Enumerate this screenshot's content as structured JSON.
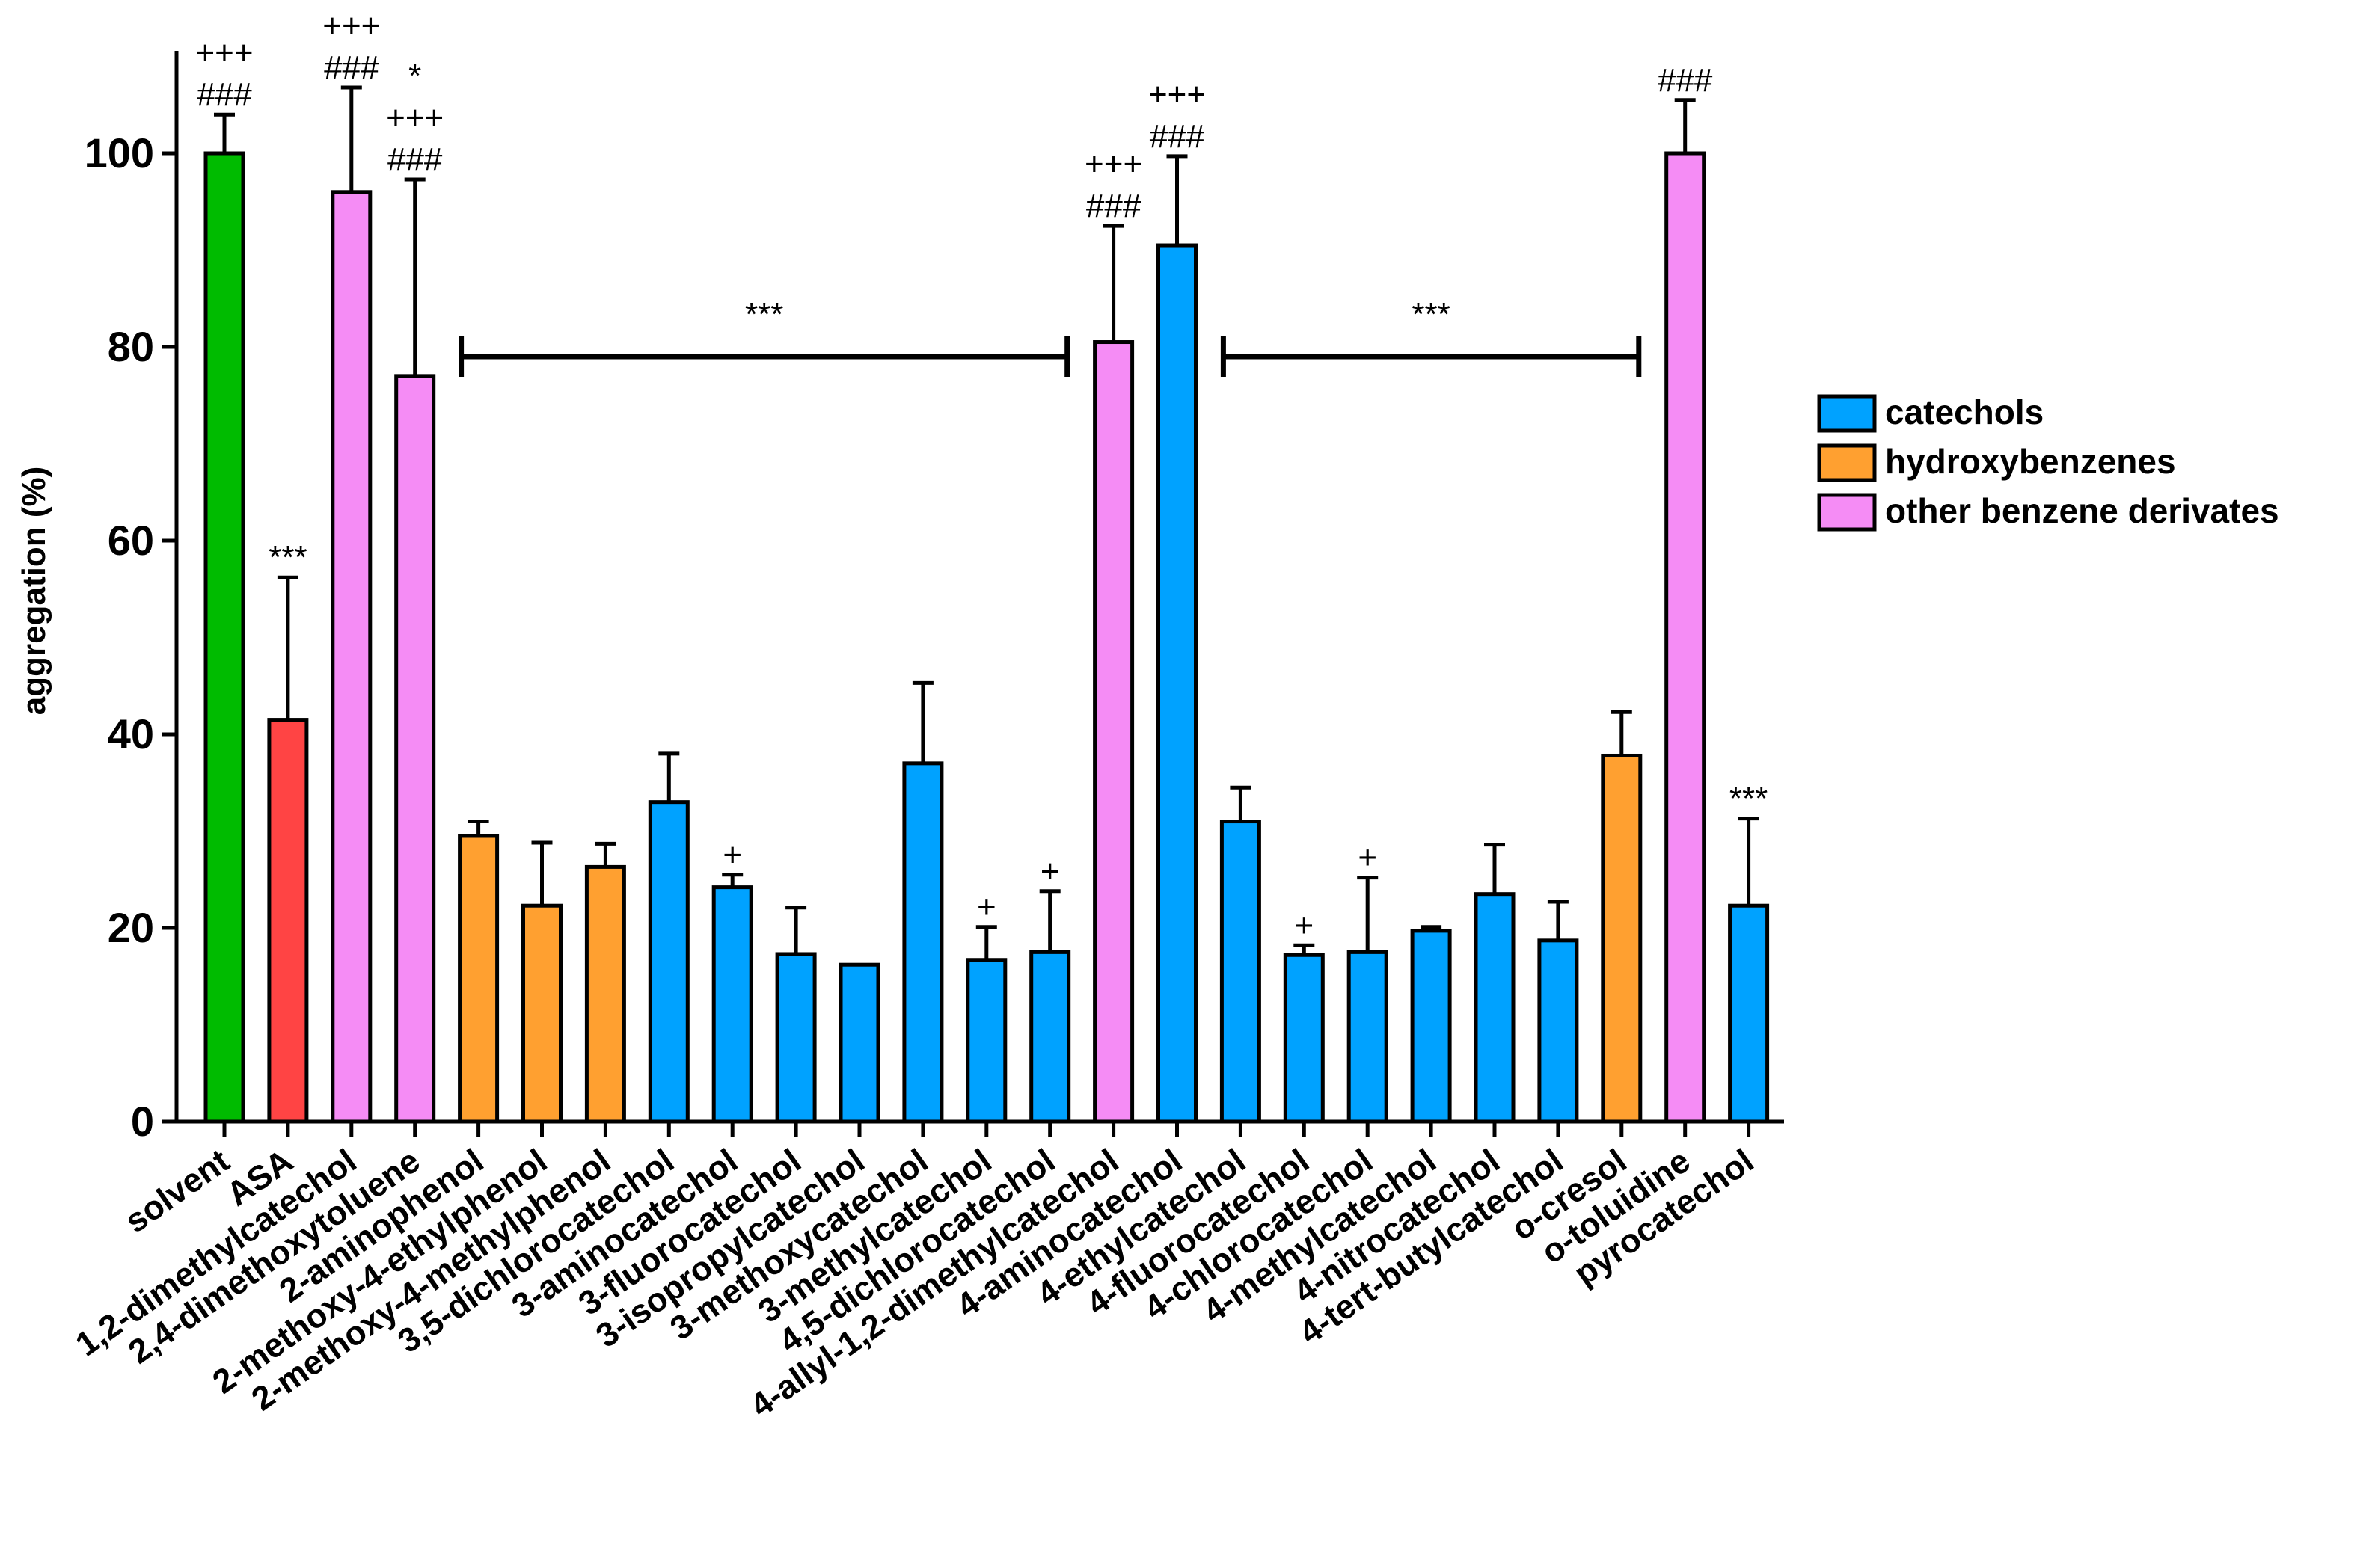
{
  "chart_data": {
    "type": "bar",
    "title": "",
    "xlabel": "",
    "ylabel": "aggregation (%)",
    "ylim": [
      0,
      110
    ],
    "yticks": [
      0,
      20,
      40,
      60,
      80,
      100
    ],
    "grid": false,
    "legend_position": "right",
    "colors": {
      "control": "#00bb00",
      "reference": "#ff4444",
      "catechols": "#00a2ff",
      "hydroxybenzenes": "#ffa030",
      "other": "#f58cf5",
      "outline": "#000000"
    },
    "legend": [
      {
        "group": "catechols",
        "label": "catechols"
      },
      {
        "group": "hydroxybenzenes",
        "label": "hydroxybenzenes"
      },
      {
        "group": "other",
        "label": "other benzene derivates"
      }
    ],
    "categories": [
      "solvent",
      "ASA",
      "1,2-dimethylcatechol",
      "2,4-dimethoxytoluene",
      "2-aminophenol",
      "2-methoxy-4-ethylphenol",
      "2-methoxy-4-methylphenol",
      "3,5-dichlorocatechol",
      "3-aminocatechol",
      "3-fluorocatechol",
      "3-isopropylcatechol",
      "3-methoxycatechol",
      "3-methylcatechol",
      "4,5-dichlorocatechol",
      "4-allyl-1,2-dimethylcatechol",
      "4-aminocatechol",
      "4-ethylcatechol",
      "4-fluorocatechol",
      "4-chlorocatechol",
      "4-methylcatechol",
      "4-nitrocatechol",
      "4-tert-butylcatechol",
      "o-cresol",
      "o-toluidine",
      "pyrocatechol"
    ],
    "values": [
      100,
      41.5,
      96,
      77,
      29.5,
      22.3,
      26.3,
      33,
      24.2,
      17.3,
      16.2,
      37,
      16.7,
      17.5,
      80.5,
      90.5,
      31,
      17.2,
      17.5,
      19.7,
      23.5,
      18.7,
      37.8,
      100,
      22.3
    ],
    "errors": [
      4,
      14.7,
      10.8,
      20.3,
      1.5,
      6.5,
      2.4,
      5,
      1.3,
      4.8,
      0,
      8.3,
      3.4,
      6.3,
      12,
      9.2,
      3.5,
      1,
      7.7,
      0.4,
      5.1,
      4,
      4.5,
      5.5,
      9
    ],
    "groups": [
      "control",
      "reference",
      "other",
      "other",
      "hydroxybenzenes",
      "hydroxybenzenes",
      "hydroxybenzenes",
      "catechols",
      "catechols",
      "catechols",
      "catechols",
      "catechols",
      "catechols",
      "catechols",
      "other",
      "catechols",
      "catechols",
      "catechols",
      "catechols",
      "catechols",
      "catechols",
      "catechols",
      "hydroxybenzenes",
      "other",
      "catechols"
    ],
    "annotations": [
      [
        "###",
        "+++"
      ],
      [
        "***"
      ],
      [
        "###",
        "+++"
      ],
      [
        "###",
        "+++",
        "*"
      ],
      [],
      [],
      [],
      [],
      [
        "+"
      ],
      [],
      [],
      [],
      [
        "+"
      ],
      [
        "+"
      ],
      [
        "###",
        "+++"
      ],
      [
        "###",
        "+++"
      ],
      [],
      [
        "+"
      ],
      [
        "+"
      ],
      [],
      [],
      [],
      [],
      [
        "###"
      ],
      [
        "***"
      ]
    ],
    "brackets": [
      {
        "from": 4,
        "to": 13,
        "value": 79,
        "label": "***"
      },
      {
        "from": 16,
        "to": 22,
        "value": 79,
        "label": "***"
      }
    ]
  }
}
